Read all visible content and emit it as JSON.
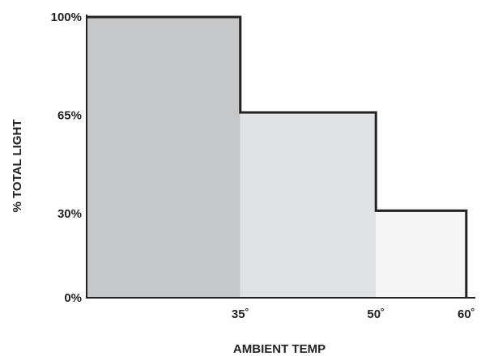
{
  "chart_data": {
    "type": "bar",
    "title": "",
    "xlabel": "AMBIENT TEMP",
    "ylabel": "% TOTAL LIGHT",
    "x_tick_labels": [
      "35˚",
      "50˚",
      "60˚"
    ],
    "y_tick_labels": [
      "0%",
      "30%",
      "65%",
      "100%"
    ],
    "y_ticks": [
      0,
      30,
      65,
      100
    ],
    "x_ticks": [
      35,
      50,
      60
    ],
    "xlim": [
      18,
      61
    ],
    "ylim": [
      0,
      100
    ],
    "grid": false,
    "steps": [
      {
        "x_start": 18,
        "x_end": 35,
        "value": 100,
        "fill": "#c6c7c9"
      },
      {
        "x_start": 35,
        "x_end": 50,
        "value": 66,
        "fill": "#e1e2e4"
      },
      {
        "x_start": 50,
        "x_end": 60,
        "value": 31,
        "fill": "#f5f5f6"
      }
    ],
    "outline_color": "#222222",
    "axis_color": "#222222"
  }
}
